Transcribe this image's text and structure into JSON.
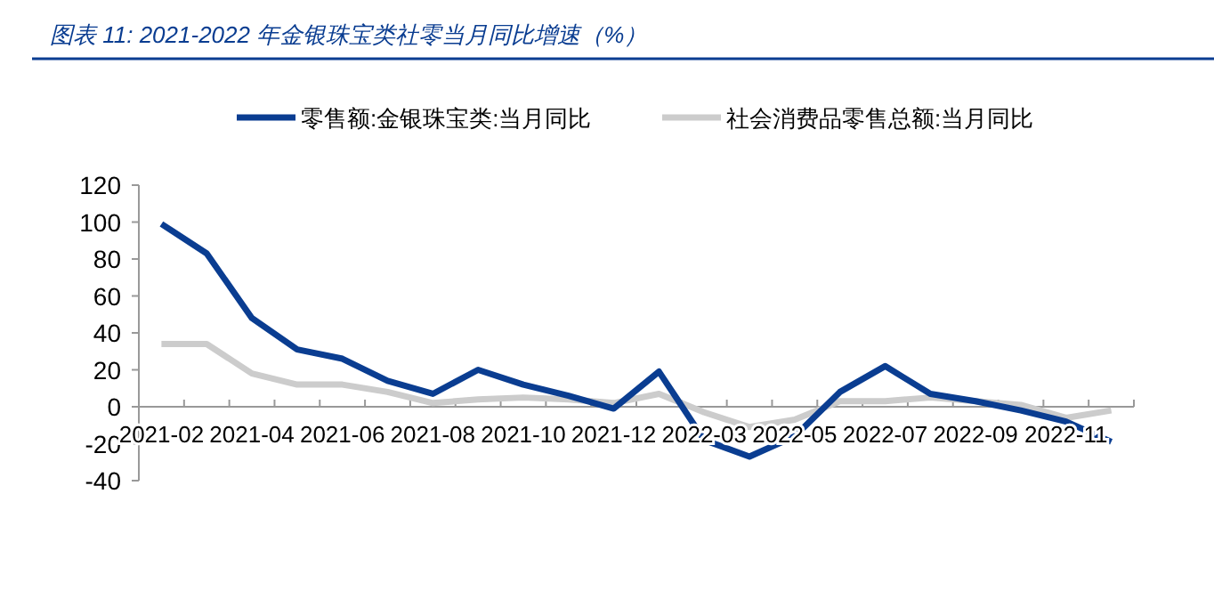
{
  "chart_data": {
    "type": "line",
    "title": "图表 11:  2021-2022 年金银珠宝类社零当月同比增速（%）",
    "categories": [
      "2021-02",
      null,
      "2021-04",
      null,
      "2021-06",
      null,
      "2021-08",
      null,
      "2021-10",
      null,
      "2021-12",
      null,
      "2022-03",
      null,
      "2022-05",
      null,
      "2022-07",
      null,
      "2022-09",
      null,
      "2022-11",
      null
    ],
    "series": [
      {
        "name": "零售额:金银珠宝类:当月同比",
        "color": "#0a3d91",
        "values": [
          99,
          83,
          48,
          31,
          26,
          14,
          7,
          20,
          12,
          6,
          -1,
          19,
          -18,
          -27,
          -16,
          8,
          22,
          7,
          3,
          -2,
          -8,
          -19
        ]
      },
      {
        "name": "社会消费品零售总额:当月同比",
        "color": "#cccccc",
        "values": [
          34,
          34,
          18,
          12,
          12,
          8,
          2,
          4,
          5,
          4,
          2,
          7,
          -3,
          -11,
          -7,
          3,
          3,
          5,
          3,
          1,
          -6,
          -2
        ]
      }
    ],
    "ylim": [
      -40,
      120
    ],
    "yticks": [
      -40,
      -20,
      0,
      20,
      40,
      60,
      80,
      100,
      120
    ],
    "grid": false,
    "legend": "top",
    "marker": "none",
    "line_style": "solid"
  }
}
